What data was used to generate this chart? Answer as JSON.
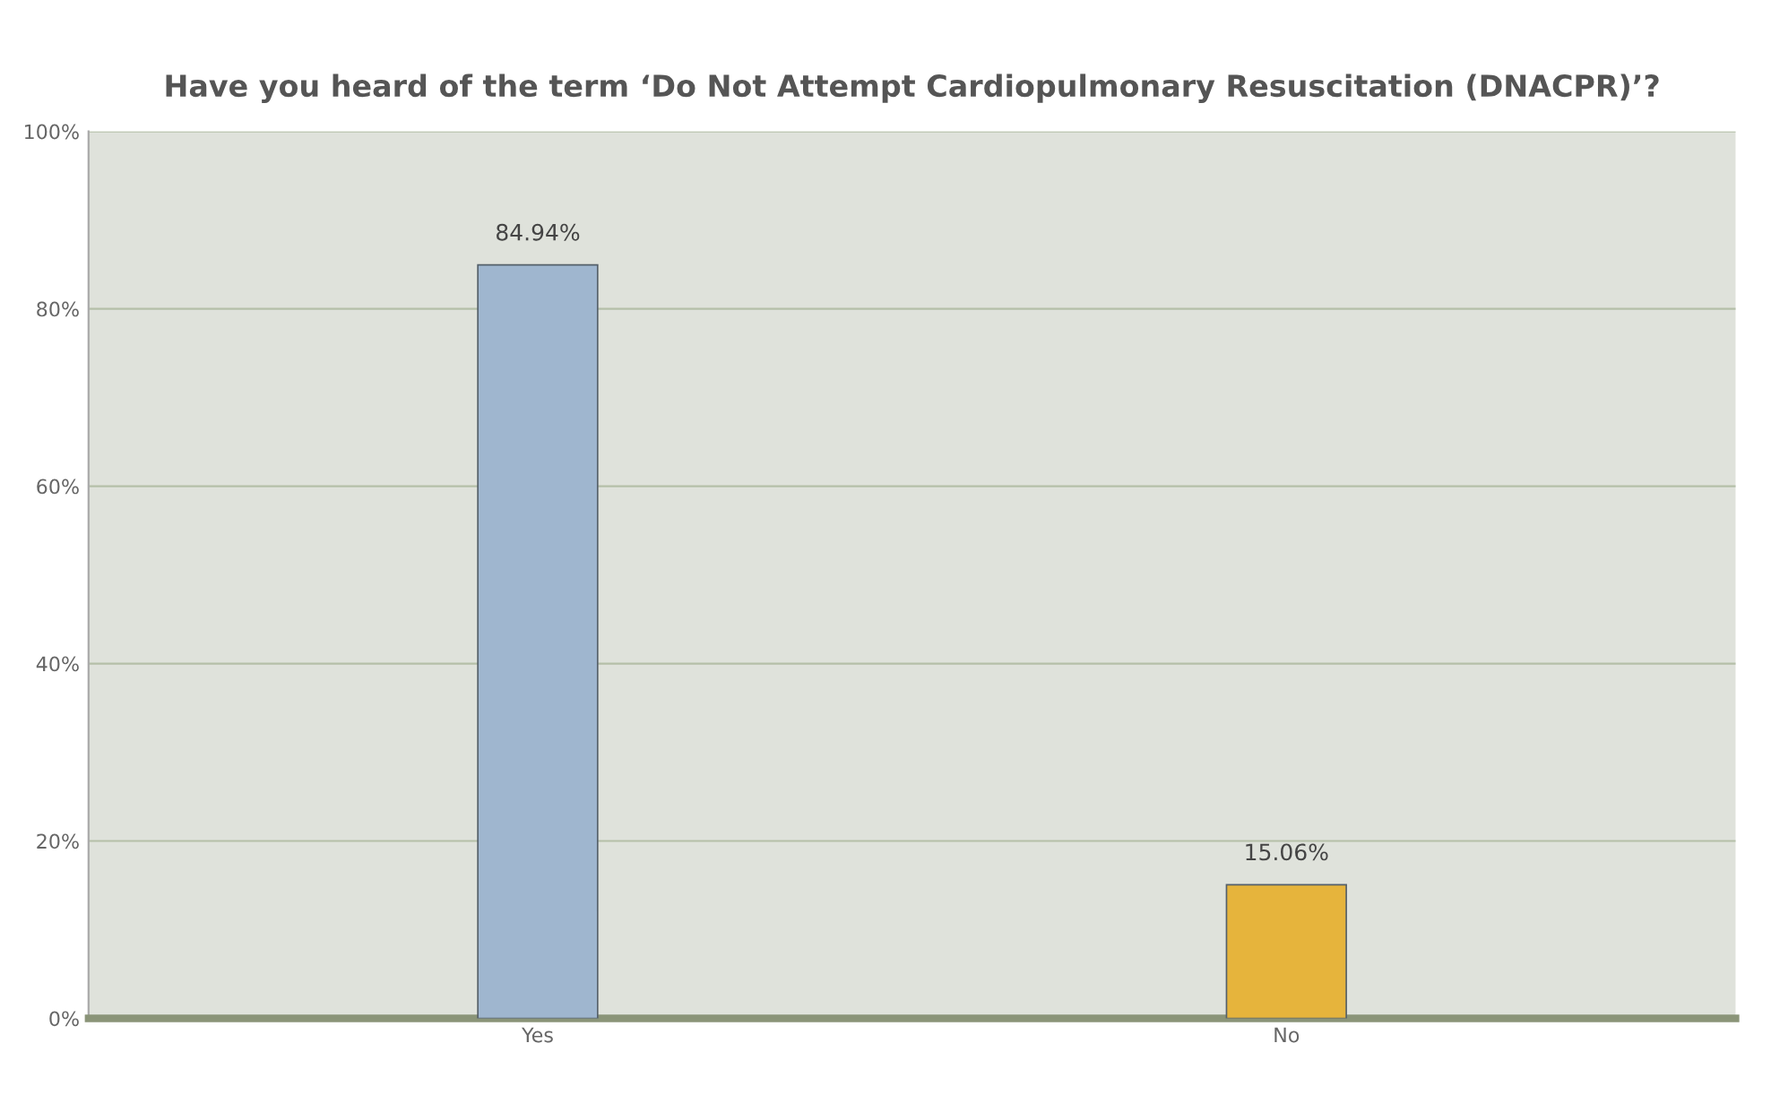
{
  "chart_data": {
    "type": "bar",
    "title": "Have you heard of the term ‘Do Not Attempt Cardiopulmonary Resuscitation (DNACPR)’?",
    "categories": [
      "Yes",
      "No"
    ],
    "values": [
      84.94,
      15.06
    ],
    "colors": [
      "#9fb6cf",
      "#e6b43c"
    ],
    "value_labels": [
      "84.94%",
      "15.06%"
    ],
    "ylim": [
      0,
      100
    ],
    "yticks": [
      {
        "value": 0,
        "label": "0%"
      },
      {
        "value": 20,
        "label": "20%"
      },
      {
        "value": 40,
        "label": "40%"
      },
      {
        "value": 60,
        "label": "60%"
      },
      {
        "value": 80,
        "label": "80%"
      },
      {
        "value": 100,
        "label": "100%"
      }
    ],
    "grid": "y"
  }
}
